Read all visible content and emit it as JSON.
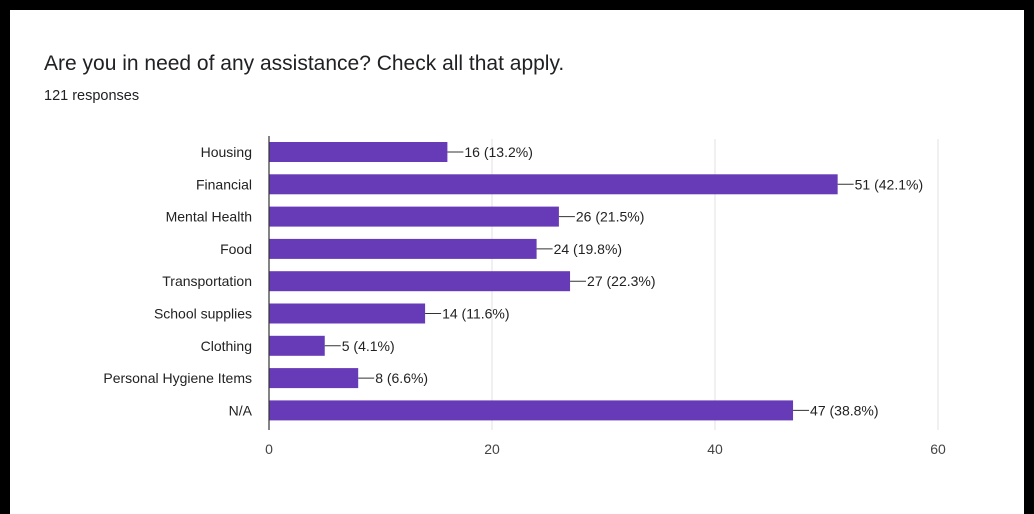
{
  "question": {
    "title": "Are you in need of any assistance? Check all that apply.",
    "responses": "121 responses"
  },
  "chart_data": {
    "type": "bar",
    "orientation": "horizontal",
    "categories": [
      "Housing",
      "Financial",
      "Mental Health",
      "Food",
      "Transportation",
      "School supplies",
      "Clothing",
      "Personal Hygiene Items",
      "N/A"
    ],
    "values": [
      16,
      51,
      26,
      24,
      27,
      14,
      5,
      8,
      47
    ],
    "labels": [
      "16 (13.2%)",
      "51 (42.1%)",
      "26 (21.5%)",
      "24 (19.8%)",
      "27 (22.3%)",
      "14 (11.6%)",
      "5 (4.1%)",
      "8 (6.6%)",
      "47 (38.8%)"
    ],
    "xlim": [
      0,
      60
    ],
    "xticks": [
      0,
      20,
      40,
      60
    ],
    "grid": true,
    "bar_color": "#673ab7"
  }
}
